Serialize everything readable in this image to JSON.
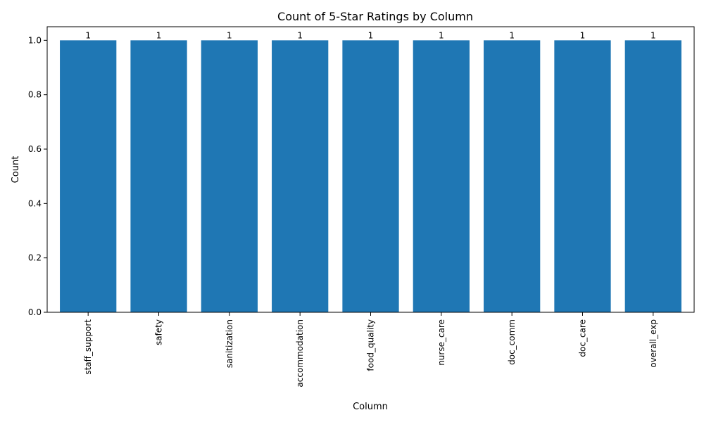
{
  "chart_data": {
    "type": "bar",
    "title": "Count of 5-Star Ratings by Column",
    "xlabel": "Column",
    "ylabel": "Count",
    "categories": [
      "staff_support",
      "safety",
      "sanitization",
      "accommodation",
      "food_quality",
      "nurse_care",
      "doc_comm",
      "doc_care",
      "overall_exp"
    ],
    "values": [
      1,
      1,
      1,
      1,
      1,
      1,
      1,
      1,
      1
    ],
    "data_labels": [
      "1",
      "1",
      "1",
      "1",
      "1",
      "1",
      "1",
      "1",
      "1"
    ],
    "ylim": [
      0,
      1.05
    ],
    "yticks": [
      "0.0",
      "0.2",
      "0.4",
      "0.6",
      "0.8",
      "1.0"
    ],
    "bar_color": "#1f77b4",
    "grid": false,
    "legend": "none"
  }
}
